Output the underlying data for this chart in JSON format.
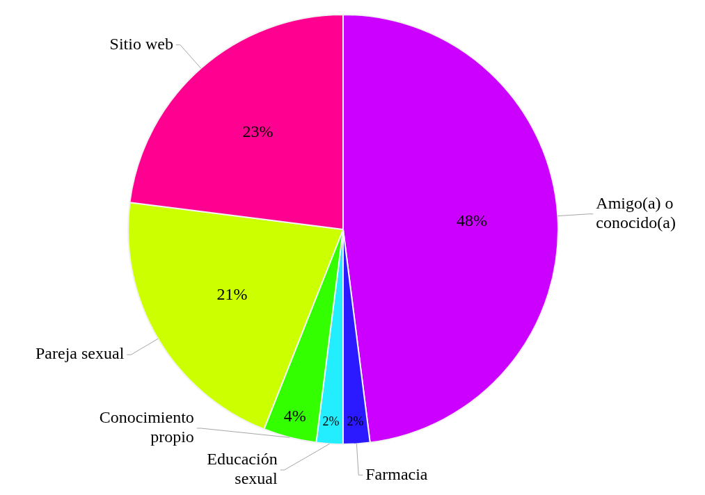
{
  "chart_data": {
    "type": "pie",
    "categories": [
      "Amigo(a) o conocido(a)",
      "Farmacia",
      "Educación sexual",
      "Conocimiento propio",
      "Pareja sexual",
      "Sitio web"
    ],
    "values": [
      48,
      2,
      2,
      4,
      21,
      23
    ],
    "value_labels": [
      "48%",
      "2%",
      "2%",
      "4%",
      "21%",
      "23%"
    ],
    "colors": [
      "#cc00ff",
      "#2b1aff",
      "#22eeff",
      "#33ff00",
      "#ccff00",
      "#ff0090"
    ],
    "legend": false
  }
}
